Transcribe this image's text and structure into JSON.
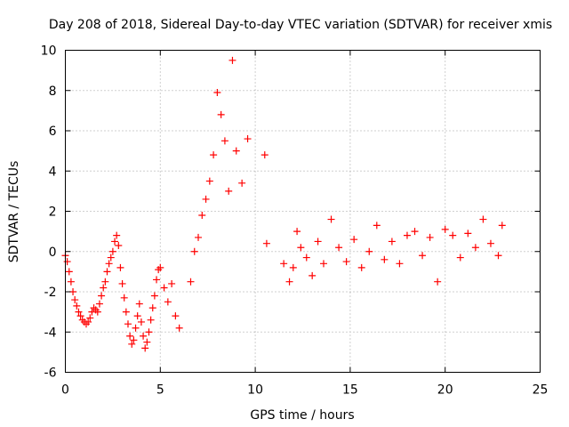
{
  "chart_data": {
    "type": "scatter",
    "title": "Day 208 of 2018, Sidereal Day-to-day VTEC variation (SDTVAR) for receiver xmis",
    "xlabel": "GPS time / hours",
    "ylabel": "SDTVAR / TECUs",
    "xlim": [
      0,
      25
    ],
    "ylim": [
      -6,
      10
    ],
    "xticks": [
      0,
      5,
      10,
      15,
      20,
      25
    ],
    "yticks": [
      -6,
      -4,
      -2,
      0,
      2,
      4,
      6,
      8,
      10
    ],
    "grid": true,
    "marker": "plus",
    "color": "#ff0000",
    "series": [
      {
        "name": "SDTVAR",
        "x": [
          0.0,
          0.1,
          0.2,
          0.3,
          0.4,
          0.5,
          0.6,
          0.7,
          0.8,
          0.9,
          1.0,
          1.1,
          1.2,
          1.3,
          1.4,
          1.5,
          1.6,
          1.7,
          1.8,
          1.9,
          2.0,
          2.1,
          2.2,
          2.3,
          2.4,
          2.5,
          2.6,
          2.7,
          2.8,
          2.9,
          3.0,
          3.1,
          3.2,
          3.3,
          3.4,
          3.5,
          3.6,
          3.7,
          3.8,
          3.9,
          4.0,
          4.1,
          4.2,
          4.3,
          4.4,
          4.5,
          4.6,
          4.7,
          4.8,
          4.9,
          5.0,
          5.2,
          5.4,
          5.6,
          5.8,
          6.0,
          6.6,
          6.8,
          7.0,
          7.2,
          7.4,
          7.6,
          7.8,
          8.0,
          8.2,
          8.4,
          8.6,
          8.8,
          9.0,
          9.3,
          9.6,
          10.5,
          10.6,
          11.5,
          11.8,
          12.0,
          12.2,
          12.4,
          12.7,
          13.0,
          13.3,
          13.6,
          14.0,
          14.4,
          14.8,
          15.2,
          15.6,
          16.0,
          16.4,
          16.8,
          17.2,
          17.6,
          18.0,
          18.4,
          18.8,
          19.2,
          19.6,
          20.0,
          20.4,
          20.8,
          21.2,
          21.6,
          22.0,
          22.4,
          22.8,
          23.0
        ],
        "y": [
          -0.2,
          -0.5,
          -1.0,
          -1.5,
          -2.0,
          -2.4,
          -2.7,
          -3.0,
          -3.2,
          -3.4,
          -3.5,
          -3.6,
          -3.5,
          -3.3,
          -3.0,
          -2.8,
          -2.9,
          -3.0,
          -2.6,
          -2.2,
          -1.8,
          -1.5,
          -1.0,
          -0.6,
          -0.3,
          0.0,
          0.5,
          0.8,
          0.3,
          -0.8,
          -1.6,
          -2.3,
          -3.0,
          -3.6,
          -4.2,
          -4.6,
          -4.4,
          -3.8,
          -3.2,
          -2.6,
          -3.5,
          -4.2,
          -4.8,
          -4.5,
          -4.0,
          -3.4,
          -2.8,
          -2.2,
          -1.4,
          -0.9,
          -0.8,
          -1.8,
          -2.5,
          -1.6,
          -3.2,
          -3.8,
          -1.5,
          0.0,
          0.7,
          1.8,
          2.6,
          3.5,
          4.8,
          7.9,
          6.8,
          5.5,
          3.0,
          9.5,
          5.0,
          3.4,
          5.6,
          4.8,
          0.4,
          -0.6,
          -1.5,
          -0.8,
          1.0,
          0.2,
          -0.3,
          -1.2,
          0.5,
          -0.6,
          1.6,
          0.2,
          -0.5,
          0.6,
          -0.8,
          0.0,
          1.3,
          -0.4,
          0.5,
          -0.6,
          0.8,
          1.0,
          -0.2,
          0.7,
          -1.5,
          1.1,
          0.8,
          -0.3,
          0.9,
          0.2,
          1.6,
          0.4,
          -0.2,
          1.3
        ]
      }
    ]
  }
}
